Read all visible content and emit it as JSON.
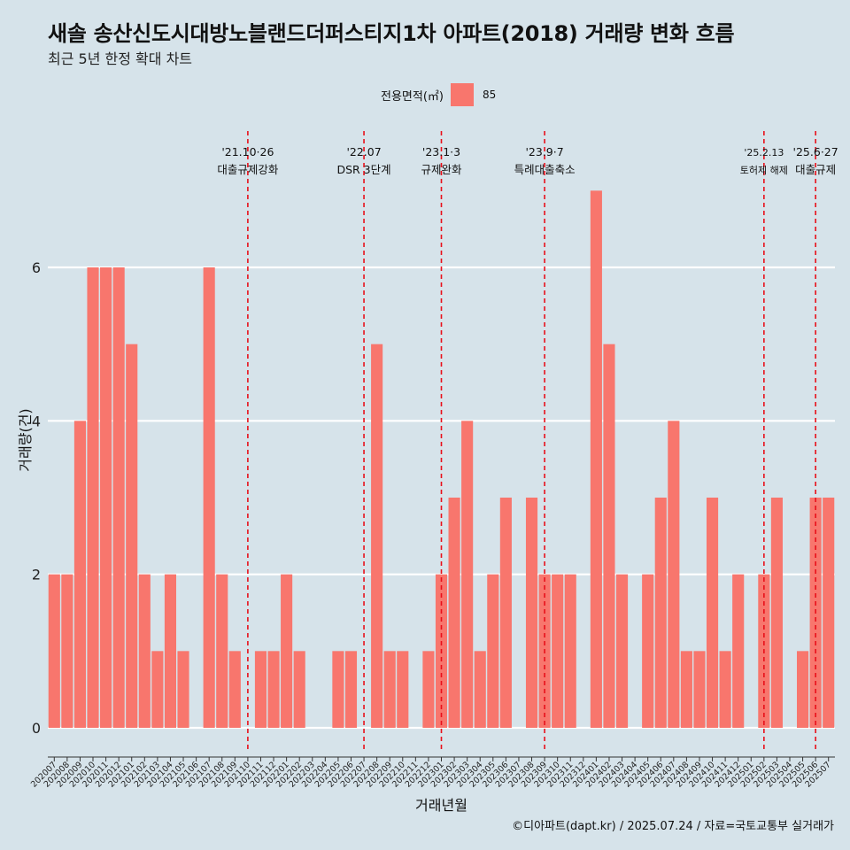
{
  "title": "새솔 송산신도시대방노블랜드더퍼스티지1차 아파트(2018) 거래량 변화 흐름",
  "subtitle": "최근 5년 한정 확대 차트",
  "caption": "©디아파트(dapt.kr) / 2025.07.24 / 자료=국토교통부 실거래가",
  "legend": {
    "title": "전용면적(㎡)",
    "entry": "85",
    "color": "#f8766d"
  },
  "chart_data": {
    "type": "bar",
    "xlabel": "거래년월",
    "ylabel": "거래량(건)",
    "ylim": [
      -0.3,
      7.8
    ],
    "yticks": [
      0,
      2,
      4,
      6
    ],
    "bar_color": "#f8766d",
    "grid": "horizontal-major",
    "categories": [
      "202007",
      "202008",
      "202009",
      "202010",
      "202011",
      "202012",
      "202101",
      "202102",
      "202103",
      "202104",
      "202105",
      "202106",
      "202107",
      "202108",
      "202109",
      "202110",
      "202111",
      "202112",
      "202201",
      "202202",
      "202203",
      "202204",
      "202205",
      "202206",
      "202207",
      "202208",
      "202209",
      "202210",
      "202211",
      "202212",
      "202301",
      "202302",
      "202303",
      "202304",
      "202305",
      "202306",
      "202307",
      "202308",
      "202309",
      "202310",
      "202311",
      "202312",
      "202401",
      "202402",
      "202403",
      "202404",
      "202405",
      "202406",
      "202407",
      "202408",
      "202409",
      "202410",
      "202411",
      "202412",
      "202501",
      "202502",
      "202503",
      "202504",
      "202505",
      "202506",
      "202507"
    ],
    "values": [
      2,
      2,
      4,
      6,
      6,
      6,
      5,
      2,
      1,
      2,
      1,
      0,
      6,
      2,
      1,
      0,
      1,
      1,
      2,
      1,
      0,
      0,
      1,
      1,
      0,
      5,
      1,
      1,
      0,
      1,
      2,
      3,
      4,
      1,
      2,
      3,
      0,
      3,
      2,
      2,
      2,
      0,
      7,
      5,
      2,
      0,
      2,
      3,
      4,
      1,
      1,
      3,
      1,
      2,
      0,
      2,
      3,
      0,
      1,
      3,
      3
    ],
    "annotations": [
      {
        "category": "202110",
        "date": "'21.10·26",
        "label": "대출규제강화"
      },
      {
        "category": "202207",
        "date": "'22.07",
        "label": "DSR 3단계"
      },
      {
        "category": "202301",
        "date": "'23.1·3",
        "label": "규제완화"
      },
      {
        "category": "202309",
        "date": "'23.9·7",
        "label": "특례대출축소"
      },
      {
        "category": "202502",
        "date": "'25.2.13",
        "label": "토허제 해제"
      },
      {
        "category": "202506",
        "date": "'25.6·27",
        "label": "대출규제"
      }
    ]
  }
}
